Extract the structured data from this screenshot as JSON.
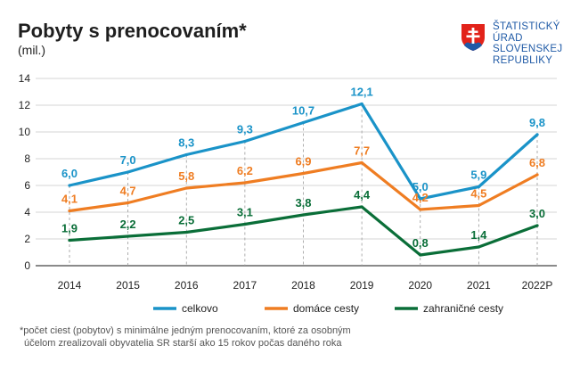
{
  "header": {
    "title": "Pobyty s prenocovaním*",
    "subtitle": "(mil.)"
  },
  "logo": {
    "lines": [
      "ŠTATISTICKÝ",
      "ÚRAD",
      "SLOVENSKEJ",
      "REPUBLIKY"
    ],
    "color": "#1f5aa6",
    "shield_red": "#e2231a",
    "shield_white": "#ffffff",
    "shield_blue": "#1f5aa6"
  },
  "footnote": {
    "line1": "*počet ciest (pobytov) s minimálne jedným prenocovaním, ktoré za osobným",
    "line2": "účelom zrealizovali obyvatelia SR starší ako 15 rokov počas daného roka"
  },
  "chart_data": {
    "type": "line",
    "categories": [
      "2014",
      "2015",
      "2016",
      "2017",
      "2018",
      "2019",
      "2020",
      "2021",
      "2022P"
    ],
    "ylim": [
      0,
      14
    ],
    "yticks": [
      "0",
      "2",
      "4",
      "6",
      "8",
      "10",
      "12",
      "14"
    ],
    "grid": "horizontal gridlines; dashed vertical drop lines at points",
    "legend_position": "bottom",
    "series": [
      {
        "name": "celkovo",
        "color": "#1a93c8",
        "values": [
          6.0,
          7.0,
          8.3,
          9.3,
          10.7,
          12.1,
          5.0,
          5.9,
          9.8
        ],
        "labels": [
          "6,0",
          "7,0",
          "8,3",
          "9,3",
          "10,7",
          "12,1",
          "5,0",
          "5,9",
          "9,8"
        ]
      },
      {
        "name": "domáce cesty",
        "color": "#ef7d22",
        "values": [
          4.1,
          4.7,
          5.8,
          6.2,
          6.9,
          7.7,
          4.2,
          4.5,
          6.8
        ],
        "labels": [
          "4,1",
          "4,7",
          "5,8",
          "6,2",
          "6,9",
          "7,7",
          "4,2",
          "4,5",
          "6,8"
        ]
      },
      {
        "name": "zahraničné cesty",
        "color": "#0a6e38",
        "values": [
          1.9,
          2.2,
          2.5,
          3.1,
          3.8,
          4.4,
          0.8,
          1.4,
          3.0
        ],
        "labels": [
          "1,9",
          "2,2",
          "2,5",
          "3,1",
          "3,8",
          "4,4",
          "0,8",
          "1,4",
          "3,0"
        ]
      }
    ]
  }
}
